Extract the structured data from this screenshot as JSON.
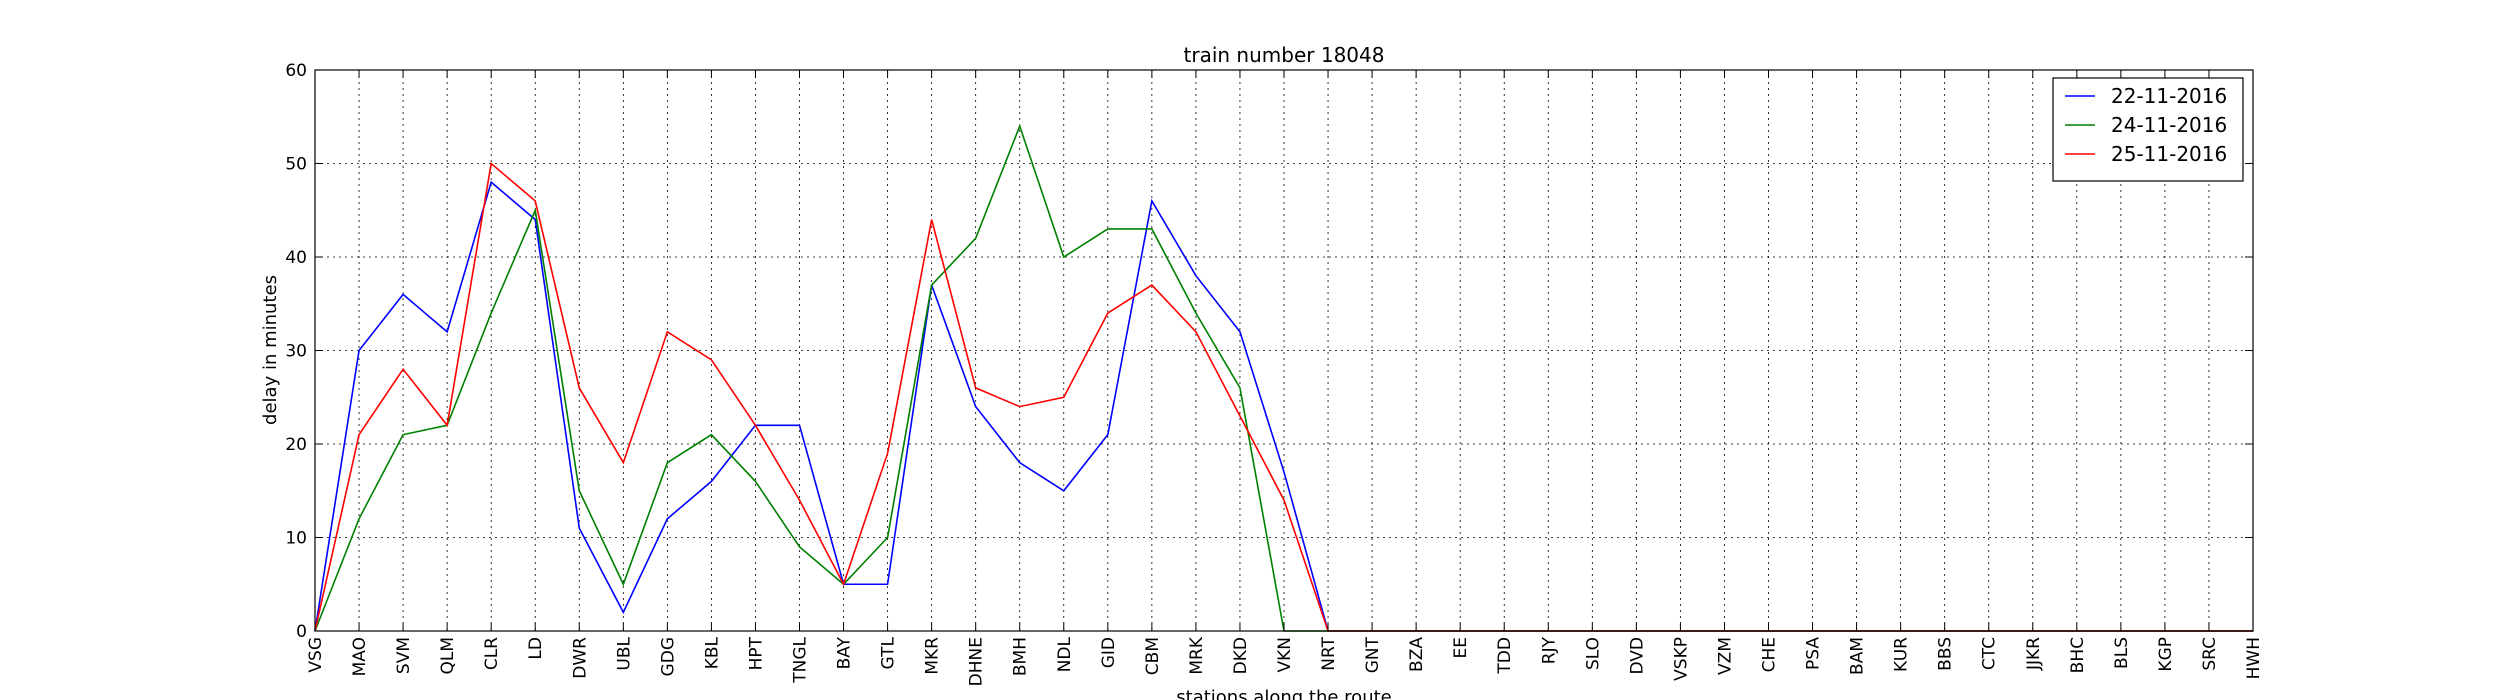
{
  "chart_data": {
    "type": "line",
    "title": "train number 18048",
    "xlabel": "stations along the route",
    "ylabel": "delay in minutes",
    "ylim": [
      0,
      60
    ],
    "yticks": [
      0,
      10,
      20,
      30,
      40,
      50,
      60
    ],
    "grid": true,
    "legend_position": "top-right",
    "categories": [
      "VSG",
      "MAO",
      "SVM",
      "QLM",
      "CLR",
      "LD",
      "DWR",
      "UBL",
      "GDG",
      "KBL",
      "HPT",
      "TNGL",
      "BAY",
      "GTL",
      "MKR",
      "DHNE",
      "BMH",
      "NDL",
      "GID",
      "CBM",
      "MRK",
      "DKD",
      "VKN",
      "NRT",
      "GNT",
      "BZA",
      "EE",
      "TDD",
      "RJY",
      "SLO",
      "DVD",
      "VSKP",
      "VZM",
      "CHE",
      "PSA",
      "BAM",
      "KUR",
      "BBS",
      "CTC",
      "JJKR",
      "BHC",
      "BLS",
      "KGP",
      "SRC",
      "HWH"
    ],
    "series": [
      {
        "name": "22-11-2016",
        "color": "#0000ff",
        "values": [
          0,
          30,
          36,
          32,
          48,
          44,
          11,
          2,
          12,
          16,
          22,
          22,
          5,
          5,
          37,
          24,
          18,
          15,
          21,
          46,
          38,
          32,
          17,
          0,
          0,
          0,
          0,
          0,
          0,
          0,
          0,
          0,
          0,
          0,
          0,
          0,
          0,
          0,
          0,
          0,
          0,
          0,
          0,
          0,
          0
        ]
      },
      {
        "name": "24-11-2016",
        "color": "#008000",
        "values": [
          0,
          12,
          21,
          22,
          34,
          45,
          15,
          5,
          18,
          21,
          16,
          9,
          5,
          10,
          37,
          42,
          54,
          40,
          43,
          43,
          34,
          26,
          0,
          0,
          0,
          0,
          0,
          0,
          0,
          0,
          0,
          0,
          0,
          0,
          0,
          0,
          0,
          0,
          0,
          0,
          0,
          0,
          0,
          0,
          0
        ]
      },
      {
        "name": "25-11-2016",
        "color": "#ff0000",
        "values": [
          0,
          21,
          28,
          22,
          50,
          46,
          26,
          18,
          32,
          29,
          22,
          14,
          5,
          19,
          44,
          26,
          24,
          25,
          34,
          37,
          32,
          23,
          14,
          0,
          0,
          0,
          0,
          0,
          0,
          0,
          0,
          0,
          0,
          0,
          0,
          0,
          0,
          0,
          0,
          0,
          0,
          0,
          0,
          0,
          0
        ]
      }
    ]
  }
}
